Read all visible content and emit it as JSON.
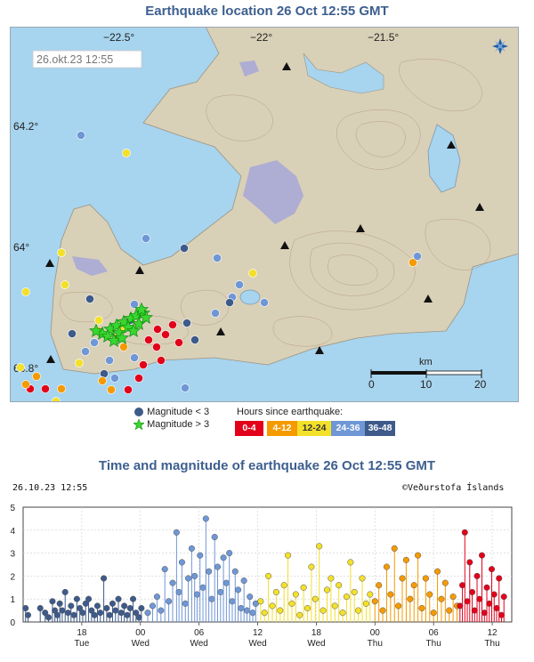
{
  "map": {
    "title": "Earthquake location   26 Oct 12:55 GMT",
    "date_stamp": "26.okt.23  12:55",
    "lon_labels": [
      "−22.5°",
      "−22°",
      "−21.5°"
    ],
    "lat_labels": [
      "64.2°",
      "64°",
      "63.8°"
    ],
    "scale": {
      "unit": "km",
      "ticks": [
        "0",
        "10",
        "20"
      ]
    },
    "compass_icon": "compass-rose-icon"
  },
  "legend": {
    "mag_lt3": "Magnitude < 3",
    "mag_gt3": "Magnitude > 3",
    "hours_title": "Hours since earthquake:",
    "bins": [
      {
        "label": "0-4",
        "color": "#e2001a",
        "text": "#ffffff"
      },
      {
        "label": "4-12",
        "color": "#f59a00",
        "text": "#ffffff"
      },
      {
        "label": "12-24",
        "color": "#f3e02a",
        "text": "#333333"
      },
      {
        "label": "24-36",
        "color": "#6f97d6",
        "text": "#ffffff"
      },
      {
        "label": "36-48",
        "color": "#3d5a8a",
        "text": "#ffffff"
      }
    ]
  },
  "timeline": {
    "title": "Time and magnitude of earthquake   26 Oct 12:55 GMT",
    "date_stamp": "26.10.23 12:55",
    "credit": "©Veðurstofa Íslands"
  },
  "chart_data": {
    "type": "scatter",
    "title": "Time and magnitude of earthquake   26 Oct 12:55 GMT",
    "xlabel": "",
    "ylabel": "",
    "ylim": [
      0,
      5
    ],
    "yticks": [
      "0",
      "1",
      "2",
      "3",
      "4",
      "5"
    ],
    "xticks": [
      {
        "hour": "18",
        "day": "Tue"
      },
      {
        "hour": "00",
        "day": "Wed"
      },
      {
        "hour": "06",
        "day": "Wed"
      },
      {
        "hour": "12",
        "day": "Wed"
      },
      {
        "hour": "18",
        "day": "Wed"
      },
      {
        "hour": "00",
        "day": "Thu"
      },
      {
        "hour": "06",
        "day": "Thu"
      },
      {
        "hour": "12",
        "day": "Thu"
      }
    ],
    "grid": true,
    "series": [
      {
        "name": "36-48",
        "color": "#3d5a8a",
        "points": [
          [
            0.5,
            0.6
          ],
          [
            1.0,
            0.3
          ],
          [
            3.5,
            0.6
          ],
          [
            4.5,
            0.4
          ],
          [
            5.2,
            0.2
          ],
          [
            6.0,
            0.9
          ],
          [
            6.5,
            0.5
          ],
          [
            7.0,
            0.3
          ],
          [
            7.5,
            0.8
          ],
          [
            8.0,
            0.5
          ],
          [
            8.6,
            1.3
          ],
          [
            9.2,
            0.4
          ],
          [
            9.8,
            0.7
          ],
          [
            10.4,
            0.3
          ],
          [
            11.0,
            1.0
          ],
          [
            11.6,
            0.6
          ],
          [
            12.2,
            0.4
          ],
          [
            12.8,
            0.8
          ],
          [
            13.4,
            1.0
          ],
          [
            14.0,
            0.5
          ],
          [
            14.6,
            0.3
          ],
          [
            15.2,
            0.7
          ],
          [
            15.8,
            0.4
          ],
          [
            16.5,
            1.9
          ],
          [
            17.1,
            0.6
          ],
          [
            17.7,
            0.3
          ],
          [
            18.3,
            0.8
          ],
          [
            18.9,
            0.5
          ],
          [
            19.5,
            1.0
          ],
          [
            20.1,
            0.4
          ],
          [
            20.7,
            0.7
          ],
          [
            21.3,
            0.3
          ],
          [
            21.9,
            0.6
          ],
          [
            22.5,
            1.0
          ],
          [
            23.1,
            0.4
          ],
          [
            23.7,
            0.2
          ],
          [
            24.2,
            0.6
          ]
        ]
      },
      {
        "name": "24-36",
        "color": "#6f97d6",
        "points": [
          [
            25.5,
            0.4
          ],
          [
            26.5,
            0.7
          ],
          [
            27.4,
            1.1
          ],
          [
            28.2,
            0.5
          ],
          [
            29.0,
            2.3
          ],
          [
            29.8,
            0.9
          ],
          [
            30.6,
            1.7
          ],
          [
            31.4,
            3.9
          ],
          [
            31.9,
            1.3
          ],
          [
            32.5,
            2.6
          ],
          [
            33.2,
            0.8
          ],
          [
            33.8,
            1.9
          ],
          [
            34.5,
            3.2
          ],
          [
            35.1,
            2.0
          ],
          [
            35.6,
            1.2
          ],
          [
            36.2,
            2.9
          ],
          [
            36.8,
            1.5
          ],
          [
            37.4,
            4.5
          ],
          [
            38.0,
            2.2
          ],
          [
            38.6,
            1.0
          ],
          [
            39.2,
            3.7
          ],
          [
            39.8,
            2.4
          ],
          [
            40.4,
            1.3
          ],
          [
            41.0,
            2.8
          ],
          [
            41.6,
            1.7
          ],
          [
            42.2,
            3.0
          ],
          [
            42.8,
            0.9
          ],
          [
            43.4,
            2.2
          ],
          [
            44.0,
            1.4
          ],
          [
            44.6,
            0.6
          ],
          [
            45.2,
            1.8
          ],
          [
            45.8,
            0.5
          ],
          [
            46.4,
            1.1
          ],
          [
            47.0,
            0.4
          ],
          [
            47.6,
            0.8
          ]
        ]
      },
      {
        "name": "12-24",
        "color": "#f3e02a",
        "points": [
          [
            48.6,
            0.9
          ],
          [
            49.4,
            0.4
          ],
          [
            50.2,
            2.0
          ],
          [
            51.0,
            0.7
          ],
          [
            51.8,
            1.3
          ],
          [
            52.6,
            0.5
          ],
          [
            53.4,
            1.6
          ],
          [
            54.2,
            2.9
          ],
          [
            55.0,
            0.8
          ],
          [
            55.8,
            1.2
          ],
          [
            56.6,
            0.3
          ],
          [
            57.4,
            1.5
          ],
          [
            58.2,
            0.6
          ],
          [
            59.0,
            2.4
          ],
          [
            59.8,
            1.0
          ],
          [
            60.6,
            3.3
          ],
          [
            61.4,
            0.5
          ],
          [
            62.2,
            1.4
          ],
          [
            63.0,
            1.9
          ],
          [
            63.8,
            0.7
          ],
          [
            64.6,
            1.6
          ],
          [
            65.4,
            0.4
          ],
          [
            66.2,
            1.1
          ],
          [
            67.0,
            2.6
          ],
          [
            67.8,
            1.3
          ],
          [
            68.6,
            0.5
          ],
          [
            69.4,
            1.9
          ],
          [
            70.2,
            0.8
          ],
          [
            71.0,
            1.2
          ]
        ]
      },
      {
        "name": "4-12",
        "color": "#f59a00",
        "points": [
          [
            72.0,
            0.9
          ],
          [
            72.8,
            1.6
          ],
          [
            73.6,
            0.5
          ],
          [
            74.4,
            2.4
          ],
          [
            75.2,
            1.2
          ],
          [
            76.0,
            3.2
          ],
          [
            76.8,
            0.7
          ],
          [
            77.6,
            1.9
          ],
          [
            78.4,
            2.7
          ],
          [
            79.2,
            1.0
          ],
          [
            80.0,
            1.6
          ],
          [
            80.8,
            2.9
          ],
          [
            81.6,
            0.6
          ],
          [
            82.4,
            1.9
          ],
          [
            83.2,
            1.2
          ],
          [
            84.0,
            0.4
          ],
          [
            84.8,
            2.2
          ],
          [
            85.6,
            1.0
          ],
          [
            86.4,
            1.7
          ],
          [
            87.2,
            0.5
          ],
          [
            88.0,
            1.1
          ],
          [
            88.8,
            0.7
          ]
        ]
      },
      {
        "name": "0-4",
        "color": "#e2001a",
        "points": [
          [
            89.4,
            0.7
          ],
          [
            89.9,
            1.6
          ],
          [
            90.4,
            3.9
          ],
          [
            90.9,
            0.9
          ],
          [
            91.4,
            2.6
          ],
          [
            91.9,
            1.3
          ],
          [
            92.4,
            0.5
          ],
          [
            92.9,
            2.0
          ],
          [
            93.4,
            1.0
          ],
          [
            93.9,
            2.9
          ],
          [
            94.4,
            0.4
          ],
          [
            94.9,
            1.5
          ],
          [
            95.4,
            0.8
          ],
          [
            95.9,
            2.3
          ],
          [
            96.4,
            1.2
          ],
          [
            96.9,
            0.6
          ],
          [
            97.4,
            1.9
          ],
          [
            97.9,
            0.3
          ],
          [
            98.4,
            1.1
          ]
        ]
      }
    ],
    "magnitude_gt3_marker": "green-star-icon"
  }
}
